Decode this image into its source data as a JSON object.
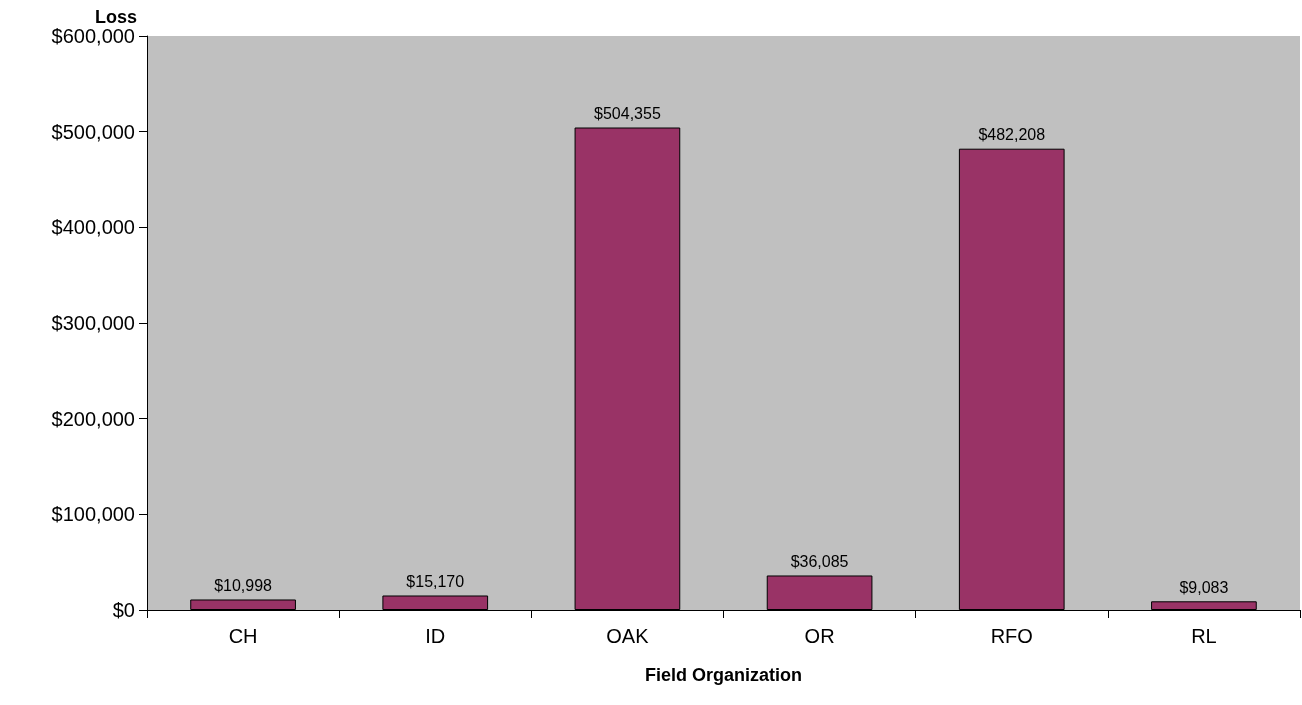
{
  "chart_data": {
    "type": "bar",
    "ylabel": "Loss",
    "xlabel": "Field Organization",
    "categories": [
      "CH",
      "ID",
      "OAK",
      "OR",
      "RFO",
      "RL"
    ],
    "values": [
      10998,
      15170,
      504355,
      36085,
      482208,
      9083
    ],
    "value_labels": [
      "$10,998",
      "$15,170",
      "$504,355",
      "$36,085",
      "$482,208",
      "$9,083"
    ],
    "color": "#993366",
    "ylim": [
      0,
      600000
    ],
    "yticks": [
      {
        "value": 0,
        "label": "$0"
      },
      {
        "value": 100000,
        "label": "$100,000"
      },
      {
        "value": 200000,
        "label": "$200,000"
      },
      {
        "value": 300000,
        "label": "$300,000"
      },
      {
        "value": 400000,
        "label": "$400,000"
      },
      {
        "value": 500000,
        "label": "$500,000"
      },
      {
        "value": 600000,
        "label": "$600,000"
      }
    ],
    "grid": false
  }
}
